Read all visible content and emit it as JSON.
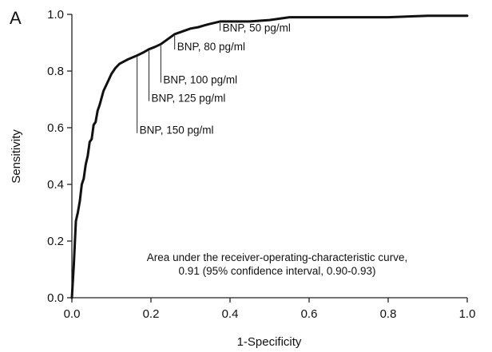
{
  "chart_data": {
    "type": "line",
    "panel_label": "A",
    "xlabel": "1-Specificity",
    "ylabel": "Sensitivity",
    "xlim": [
      0,
      1
    ],
    "ylim": [
      0,
      1
    ],
    "x_ticks": [
      "0.0",
      "0.2",
      "0.4",
      "0.6",
      "0.8",
      "1.0"
    ],
    "y_ticks": [
      "0.0",
      "0.2",
      "0.4",
      "0.6",
      "0.8",
      "1.0"
    ],
    "grid": false,
    "series": [
      {
        "x": [
          0.0,
          0.005,
          0.01,
          0.015,
          0.02,
          0.025,
          0.03,
          0.035,
          0.04,
          0.045,
          0.05,
          0.055,
          0.06,
          0.065,
          0.07,
          0.08,
          0.09,
          0.1,
          0.11,
          0.12,
          0.14,
          0.165,
          0.18,
          0.195,
          0.21,
          0.225,
          0.24,
          0.26,
          0.28,
          0.3,
          0.32,
          0.345,
          0.375,
          0.4,
          0.45,
          0.5,
          0.55,
          0.6,
          0.7,
          0.8,
          0.9,
          1.0
        ],
        "y": [
          0.0,
          0.12,
          0.27,
          0.3,
          0.34,
          0.4,
          0.42,
          0.47,
          0.5,
          0.55,
          0.56,
          0.61,
          0.62,
          0.66,
          0.68,
          0.73,
          0.76,
          0.79,
          0.81,
          0.825,
          0.84,
          0.855,
          0.865,
          0.877,
          0.885,
          0.895,
          0.91,
          0.93,
          0.94,
          0.95,
          0.955,
          0.965,
          0.975,
          0.975,
          0.975,
          0.98,
          0.99,
          0.99,
          0.99,
          0.99,
          0.995,
          0.995
        ]
      }
    ],
    "annotations": [
      {
        "label": "BNP, 50 pg/ml",
        "x": 0.375,
        "y": 0.975,
        "label_y": 0.942
      },
      {
        "label": "BNP, 80 pg/ml",
        "x": 0.26,
        "y": 0.93,
        "label_y": 0.876
      },
      {
        "label": "BNP, 100 pg/ml",
        "x": 0.225,
        "y": 0.895,
        "label_y": 0.759
      },
      {
        "label": "BNP, 125 pg/ml",
        "x": 0.195,
        "y": 0.877,
        "label_y": 0.694
      },
      {
        "label": "BNP, 150 pg/ml",
        "x": 0.165,
        "y": 0.855,
        "label_y": 0.581
      }
    ],
    "note": [
      "Area under the receiver-operating-characteristic curve,",
      "0.91 (95% confidence interval, 0.90-0.93)"
    ]
  }
}
